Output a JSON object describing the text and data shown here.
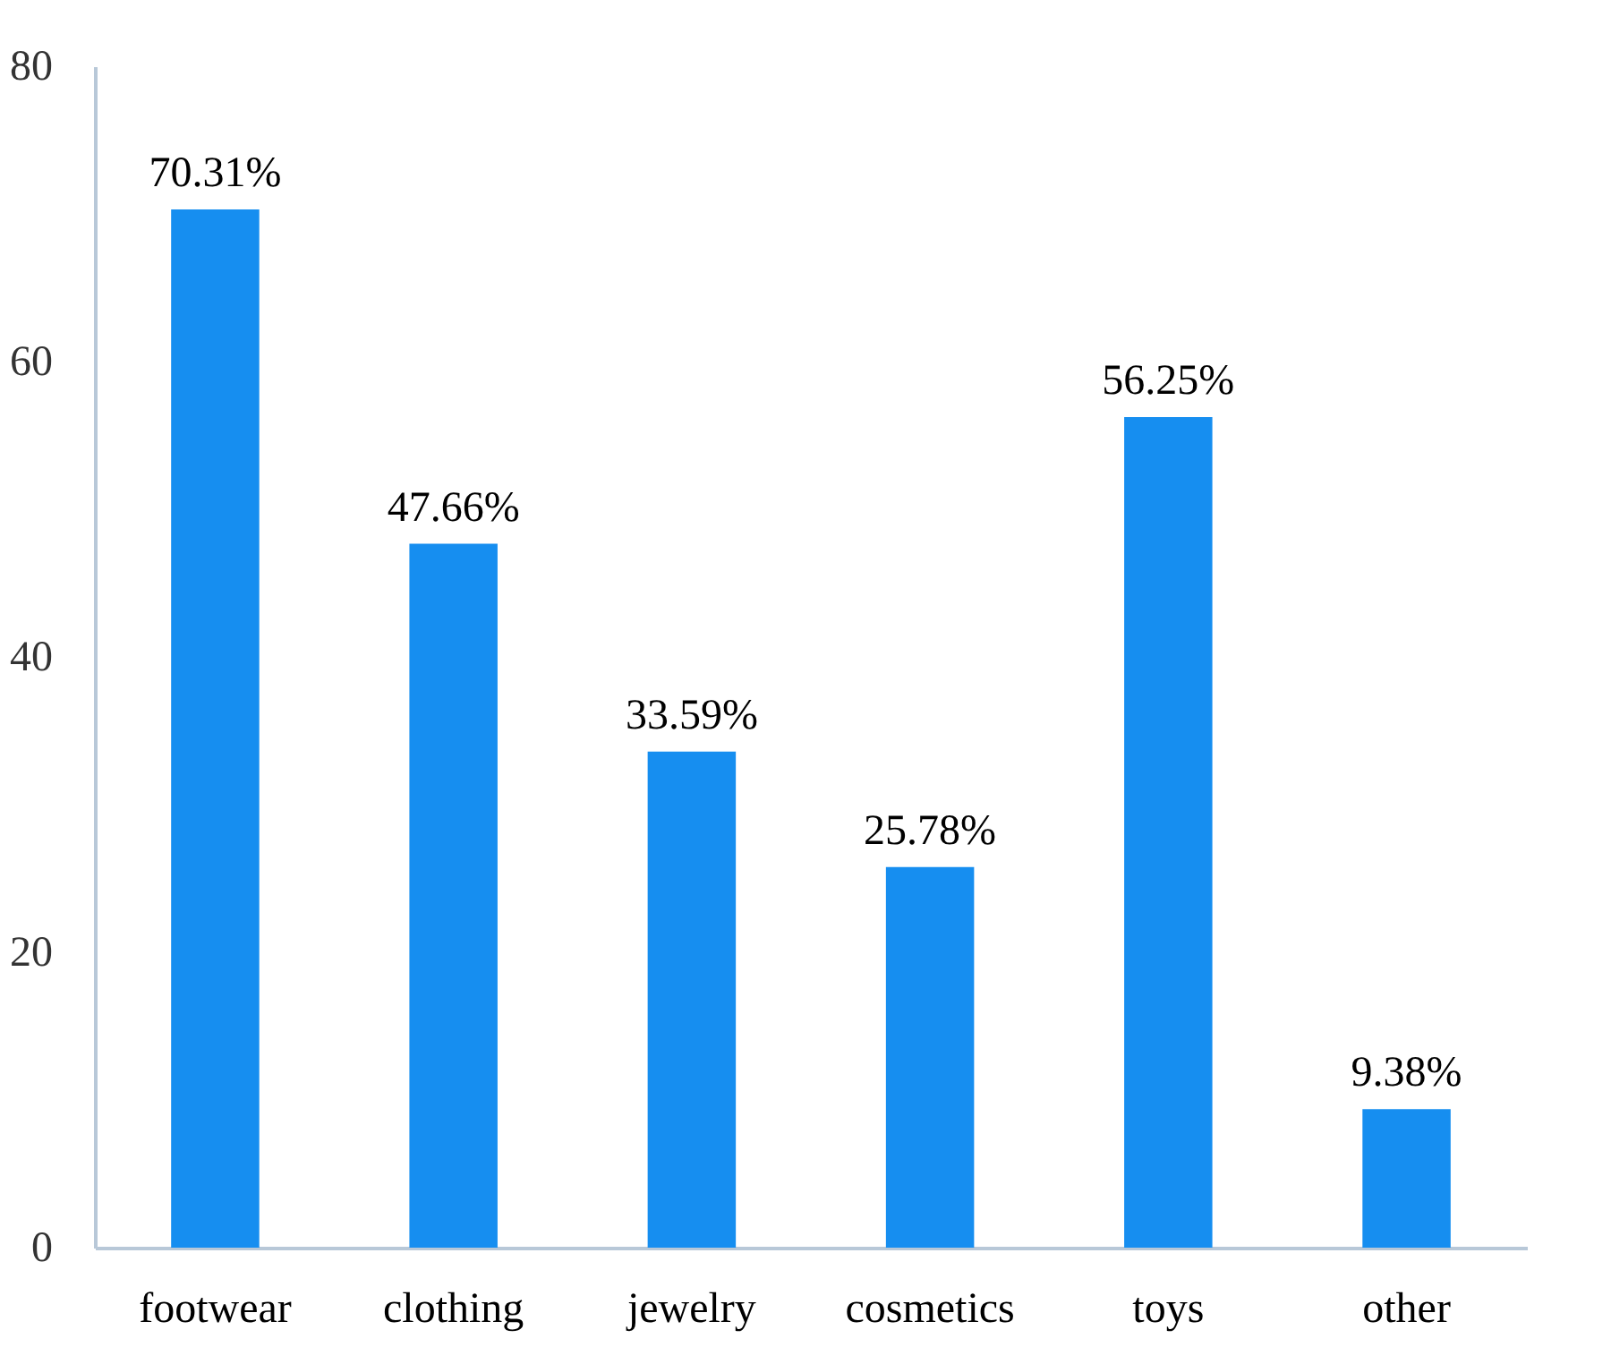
{
  "chart_data": {
    "type": "bar",
    "categories": [
      "footwear",
      "clothing",
      "jewelry",
      "cosmetics",
      "toys",
      "other"
    ],
    "values": [
      70.31,
      47.66,
      33.59,
      25.78,
      56.25,
      9.38
    ],
    "value_labels": [
      "70.31%",
      "47.66%",
      "33.59%",
      "25.78%",
      "56.25%",
      "9.38%"
    ],
    "color": "#168ef0",
    "ylim": [
      0,
      80
    ],
    "yticks": [
      0,
      20,
      40,
      60,
      80
    ],
    "grid": false
  }
}
